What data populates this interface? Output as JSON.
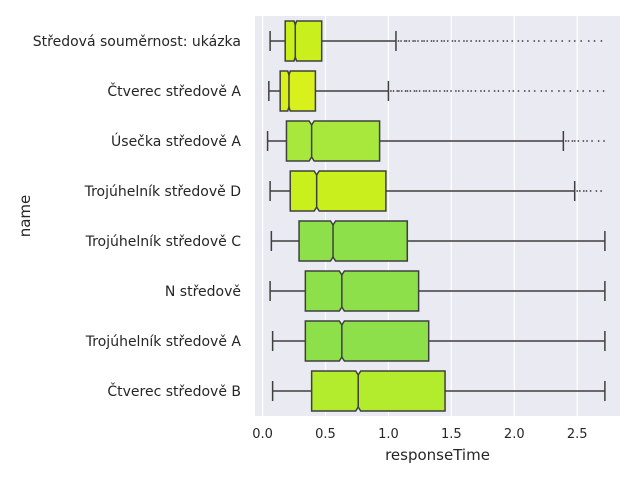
{
  "chart_data": {
    "type": "boxplot",
    "orientation": "horizontal",
    "notched": true,
    "xlabel": "responseTime",
    "ylabel": "name",
    "xlim": [
      -0.06,
      2.84
    ],
    "xticks": [
      0.0,
      0.5,
      1.0,
      1.5,
      2.0,
      2.5
    ],
    "xtick_labels": [
      "0.0",
      "0.5",
      "1.0",
      "1.5",
      "2.0",
      "2.5"
    ],
    "grid": true,
    "background": "#EAEAF2",
    "categories": [
      {
        "name": "Středová souměrnost: ukázka",
        "whisker_low": 0.06,
        "q1": 0.18,
        "median": 0.26,
        "notch_low": 0.25,
        "notch_high": 0.27,
        "q3": 0.47,
        "whisker_high": 1.06,
        "outliers_from": 1.08,
        "outliers_to": 2.72,
        "color": "#C9F01C"
      },
      {
        "name": "Čtverec středově A",
        "whisker_low": 0.05,
        "q1": 0.14,
        "median": 0.21,
        "notch_low": 0.2,
        "notch_high": 0.22,
        "q3": 0.42,
        "whisker_high": 1.0,
        "outliers_from": 1.02,
        "outliers_to": 2.72,
        "color": "#D8F01C"
      },
      {
        "name": "Úsečka středově A",
        "whisker_low": 0.04,
        "q1": 0.19,
        "median": 0.39,
        "notch_low": 0.37,
        "notch_high": 0.41,
        "q3": 0.93,
        "whisker_high": 2.39,
        "outliers_from": 2.41,
        "outliers_to": 2.72,
        "color": "#A8E83C"
      },
      {
        "name": "Trojúhelník středově D",
        "whisker_low": 0.06,
        "q1": 0.22,
        "median": 0.43,
        "notch_low": 0.41,
        "notch_high": 0.45,
        "q3": 0.98,
        "whisker_high": 2.48,
        "outliers_from": 2.5,
        "outliers_to": 2.72,
        "color": "#C9F01C"
      },
      {
        "name": "Trojúhelník středově C",
        "whisker_low": 0.07,
        "q1": 0.29,
        "median": 0.56,
        "notch_low": 0.54,
        "notch_high": 0.58,
        "q3": 1.15,
        "whisker_high": 2.72,
        "outliers_from": null,
        "outliers_to": null,
        "color": "#8EE04A"
      },
      {
        "name": "N středově",
        "whisker_low": 0.06,
        "q1": 0.34,
        "median": 0.63,
        "notch_low": 0.61,
        "notch_high": 0.65,
        "q3": 1.24,
        "whisker_high": 2.72,
        "outliers_from": null,
        "outliers_to": null,
        "color": "#8EE04A"
      },
      {
        "name": "Trojúhelník středově A",
        "whisker_low": 0.08,
        "q1": 0.34,
        "median": 0.63,
        "notch_low": 0.61,
        "notch_high": 0.65,
        "q3": 1.32,
        "whisker_high": 2.72,
        "outliers_from": null,
        "outliers_to": null,
        "color": "#8EE04A"
      },
      {
        "name": "Čtverec středově B",
        "whisker_low": 0.08,
        "q1": 0.39,
        "median": 0.76,
        "notch_low": 0.74,
        "notch_high": 0.78,
        "q3": 1.45,
        "whisker_high": 2.72,
        "outliers_from": null,
        "outliers_to": null,
        "color": "#B2EC2C"
      }
    ]
  }
}
